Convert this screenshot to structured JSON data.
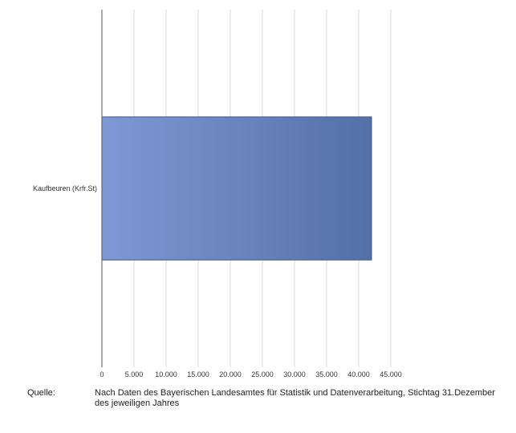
{
  "chart_data": {
    "type": "bar",
    "orientation": "horizontal",
    "categories": [
      "Kaufbeuren (Krfr.St)"
    ],
    "values": [
      42000
    ],
    "xlim": [
      0,
      45000
    ],
    "xticks": [
      0,
      5000,
      10000,
      15000,
      20000,
      25000,
      30000,
      35000,
      40000,
      45000
    ],
    "xtick_labels": [
      "0",
      "5.000",
      "10.000",
      "15.000",
      "20.000",
      "25.000",
      "30.000",
      "35.000",
      "40.000",
      "45.000"
    ],
    "grid": true,
    "bar_gradient": [
      "#7f98d6",
      "#5470a8"
    ],
    "bar_stroke": "#3e558a",
    "title": "",
    "xlabel": "",
    "ylabel": ""
  },
  "source": {
    "label": "Quelle:",
    "text": "Nach Daten des Bayerischen Landesamtes für Statistik und Datenverarbeitung, Stichtag 31.Dezember des jeweiligen Jahres"
  }
}
